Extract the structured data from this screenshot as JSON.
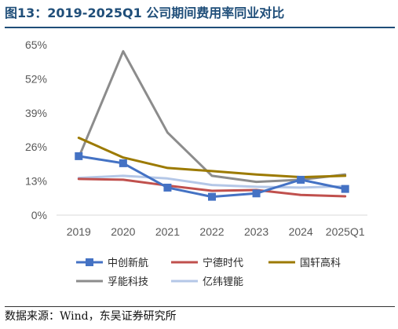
{
  "title": "图13：2019-2025Q1 公司期间费用率同业对比",
  "source": "数据来源：Wind，东吴证券研究所",
  "chart_data": {
    "type": "line",
    "categories": [
      "2019",
      "2020",
      "2021",
      "2022",
      "2023",
      "2024",
      "2025Q1"
    ],
    "y_ticks": [
      "0%",
      "13%",
      "26%",
      "39%",
      "52%",
      "65%"
    ],
    "ylim": [
      0,
      65
    ],
    "grid": false,
    "legend_position": "bottom",
    "series": [
      {
        "name": "中创新航",
        "color": "#4472c4",
        "marker": "square",
        "values": [
          22.5,
          19.8,
          10.5,
          7.0,
          8.3,
          13.5,
          10.0
        ]
      },
      {
        "name": "宁德时代",
        "color": "#c0504d",
        "marker": "none",
        "values": [
          13.8,
          13.5,
          11.3,
          9.3,
          9.6,
          7.7,
          7.2
        ]
      },
      {
        "name": "国轩高科",
        "color": "#9c7a00",
        "marker": "none",
        "values": [
          29.5,
          22.0,
          18.0,
          16.8,
          15.5,
          14.5,
          15.0
        ]
      },
      {
        "name": "孚能科技",
        "color": "#8c8c8c",
        "marker": "none",
        "values": [
          22.0,
          62.5,
          31.5,
          15.0,
          12.7,
          13.5,
          15.5
        ]
      },
      {
        "name": "亿纬锂能",
        "color": "#b4c7e7",
        "marker": "none",
        "values": [
          14.2,
          15.0,
          14.0,
          11.5,
          10.8,
          10.5,
          11.0
        ]
      }
    ]
  }
}
